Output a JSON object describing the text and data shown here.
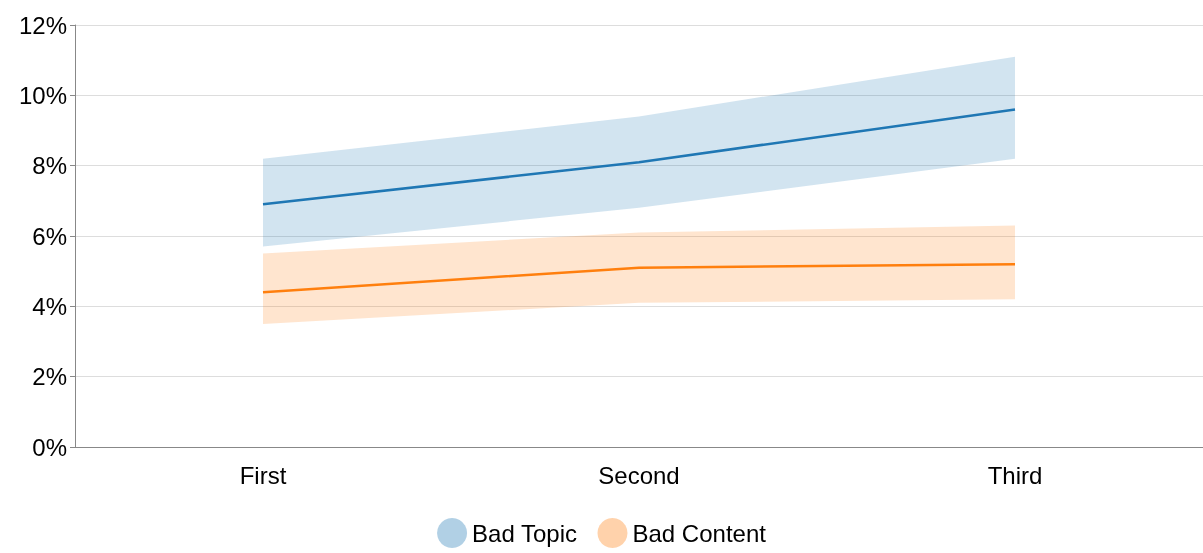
{
  "chart_data": {
    "type": "line",
    "categories": [
      "First",
      "Second",
      "Third"
    ],
    "series": [
      {
        "name": "Bad Topic",
        "color": "#1f77b4",
        "values": [
          6.9,
          8.1,
          9.6
        ],
        "lower": [
          5.7,
          6.8,
          8.2
        ],
        "upper": [
          8.2,
          9.4,
          11.1
        ]
      },
      {
        "name": "Bad Content",
        "color": "#ff7f0e",
        "values": [
          4.4,
          5.1,
          5.2
        ],
        "lower": [
          3.5,
          4.1,
          4.2
        ],
        "upper": [
          5.5,
          6.1,
          6.3
        ]
      }
    ],
    "ylim": [
      0,
      12
    ],
    "yticks": [
      {
        "value": 0,
        "label": "0%"
      },
      {
        "value": 2,
        "label": "2%"
      },
      {
        "value": 4,
        "label": "4%"
      },
      {
        "value": 6,
        "label": "6%"
      },
      {
        "value": 8,
        "label": "8%"
      },
      {
        "value": 10,
        "label": "10%"
      },
      {
        "value": 12,
        "label": "12%"
      }
    ],
    "grid": "y",
    "legend": "bottom",
    "marker": "none",
    "line_style": "solid"
  }
}
